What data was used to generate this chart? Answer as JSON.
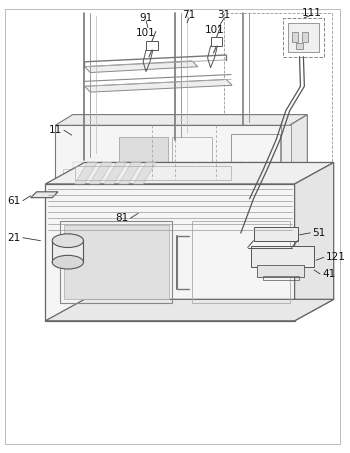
{
  "background_color": "#ffffff",
  "line_color": "#555555",
  "figsize": [
    3.5,
    4.53
  ],
  "dpi": 100
}
